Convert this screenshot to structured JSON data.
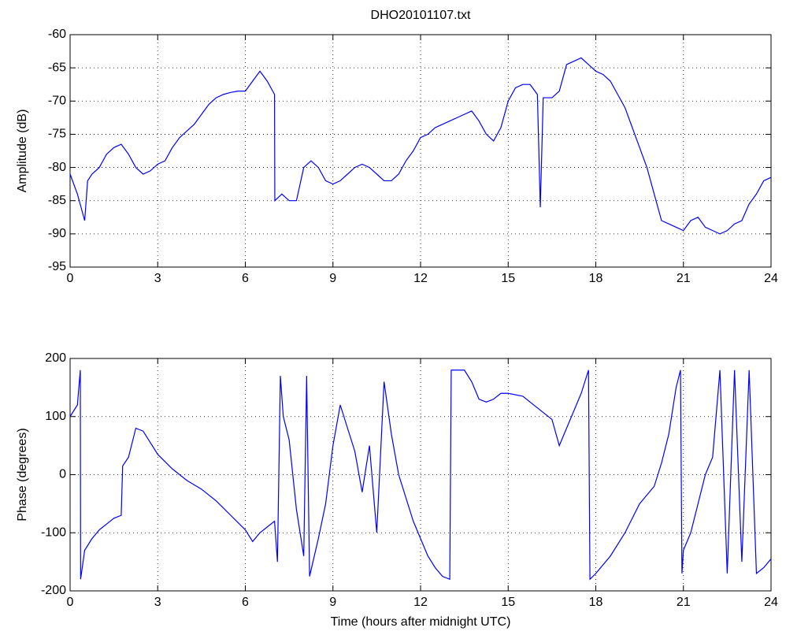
{
  "chart_data": [
    {
      "type": "line",
      "title": "DHO20101107.txt",
      "y_label": "Amplitude (dB)",
      "color": "#0000ff",
      "grid": true,
      "xlim": [
        0,
        24
      ],
      "xticks": [
        0,
        3,
        6,
        9,
        12,
        15,
        18,
        21,
        24
      ],
      "ylim": [
        -95,
        -60
      ],
      "yticks": [
        -95,
        -90,
        -85,
        -80,
        -75,
        -70,
        -65,
        -60
      ],
      "x": [
        0,
        0.25,
        0.5,
        0.6,
        0.75,
        1,
        1.25,
        1.5,
        1.75,
        2,
        2.25,
        2.5,
        2.75,
        3,
        3.25,
        3.5,
        3.75,
        4,
        4.25,
        4.5,
        4.75,
        5,
        5.25,
        5.5,
        5.75,
        6,
        6.25,
        6.5,
        6.75,
        7,
        7.01,
        7.25,
        7.5,
        7.75,
        8,
        8.25,
        8.5,
        8.75,
        9,
        9.25,
        9.5,
        9.75,
        10,
        10.25,
        10.5,
        10.75,
        11,
        11.25,
        11.5,
        11.75,
        12,
        12.25,
        12.5,
        12.75,
        13,
        13.25,
        13.5,
        13.75,
        14,
        14.25,
        14.5,
        14.75,
        15,
        15.25,
        15.5,
        15.75,
        16,
        16.1,
        16.2,
        16.5,
        16.75,
        17,
        17.25,
        17.5,
        17.75,
        18,
        18.25,
        18.5,
        18.75,
        19,
        19.25,
        19.5,
        19.75,
        20,
        20.25,
        20.5,
        20.75,
        21,
        21.25,
        21.5,
        21.75,
        22,
        22.25,
        22.5,
        22.75,
        23,
        23.25,
        23.5,
        23.75,
        24
      ],
      "values": [
        -81,
        -84,
        -88,
        -82,
        -81,
        -80,
        -78,
        -77,
        -76.5,
        -78,
        -80,
        -81,
        -80.5,
        -79.5,
        -79,
        -77,
        -75.5,
        -74.5,
        -73.5,
        -72,
        -70.5,
        -69.5,
        -69,
        -68.7,
        -68.5,
        -68.5,
        -67,
        -65.5,
        -67,
        -69,
        -85,
        -84,
        -85,
        -85,
        -80,
        -79,
        -80,
        -82,
        -82.5,
        -82,
        -81,
        -80,
        -79.5,
        -80,
        -81,
        -82,
        -82,
        -81,
        -79,
        -77.5,
        -75.5,
        -75,
        -74,
        -73.5,
        -73,
        -72.5,
        -72,
        -71.5,
        -73,
        -75,
        -76,
        -74,
        -70,
        -68,
        -67.5,
        -67.5,
        -69,
        -86,
        -69.5,
        -69.5,
        -68.5,
        -64.5,
        -64,
        -63.5,
        -64.5,
        -65.5,
        -66,
        -67,
        -69,
        -71,
        -74,
        -77,
        -80,
        -84,
        -88,
        -88.5,
        -89,
        -89.5,
        -88,
        -87.5,
        -89,
        -89.5,
        -90,
        -89.5,
        -88.5,
        -88,
        -85.5,
        -84,
        -82,
        -81.5
      ]
    },
    {
      "type": "line",
      "x_label": "Time (hours after midnight UTC)",
      "y_label": "Phase (degrees)",
      "color": "#0000ff",
      "grid": true,
      "xlim": [
        0,
        24
      ],
      "xticks": [
        0,
        3,
        6,
        9,
        12,
        15,
        18,
        21,
        24
      ],
      "ylim": [
        -200,
        200
      ],
      "yticks": [
        -200,
        -100,
        0,
        100,
        200
      ],
      "x": [
        0,
        0.25,
        0.35,
        0.36,
        0.5,
        0.75,
        1,
        1.25,
        1.5,
        1.75,
        1.8,
        2,
        2.25,
        2.5,
        2.75,
        3,
        3.5,
        4,
        4.5,
        5,
        5.5,
        6,
        6.25,
        6.5,
        6.75,
        7,
        7.1,
        7.2,
        7.3,
        7.5,
        7.75,
        8,
        8.1,
        8.2,
        8.5,
        8.75,
        9,
        9.25,
        9.5,
        9.75,
        10,
        10.25,
        10.5,
        10.75,
        11,
        11.25,
        11.5,
        11.75,
        12,
        12.25,
        12.5,
        12.75,
        13,
        13.05,
        13.5,
        13.75,
        14,
        14.25,
        14.5,
        14.75,
        15,
        15.5,
        16,
        16.5,
        16.75,
        17,
        17.5,
        17.75,
        17.8,
        18,
        18.5,
        19,
        19.5,
        20,
        20.25,
        20.5,
        20.75,
        20.9,
        20.95,
        21,
        21.25,
        21.5,
        21.75,
        22,
        22.25,
        22.5,
        22.75,
        23,
        23.25,
        23.5,
        23.75,
        24
      ],
      "values": [
        100,
        120,
        180,
        -180,
        -130,
        -110,
        -95,
        -85,
        -75,
        -70,
        15,
        30,
        80,
        75,
        55,
        35,
        10,
        -10,
        -25,
        -45,
        -70,
        -95,
        -115,
        -100,
        -90,
        -80,
        -150,
        170,
        100,
        60,
        -60,
        -140,
        170,
        -175,
        -110,
        -50,
        50,
        120,
        80,
        40,
        -30,
        50,
        -100,
        160,
        70,
        0,
        -40,
        -80,
        -110,
        -140,
        -160,
        -175,
        -180,
        180,
        180,
        160,
        130,
        125,
        130,
        140,
        140,
        135,
        115,
        95,
        50,
        80,
        140,
        180,
        -180,
        -170,
        -140,
        -100,
        -50,
        -20,
        20,
        70,
        150,
        180,
        -170,
        -130,
        -100,
        -50,
        0,
        30,
        180,
        -170,
        180,
        -150,
        180,
        -170,
        -160,
        -145
      ]
    }
  ]
}
